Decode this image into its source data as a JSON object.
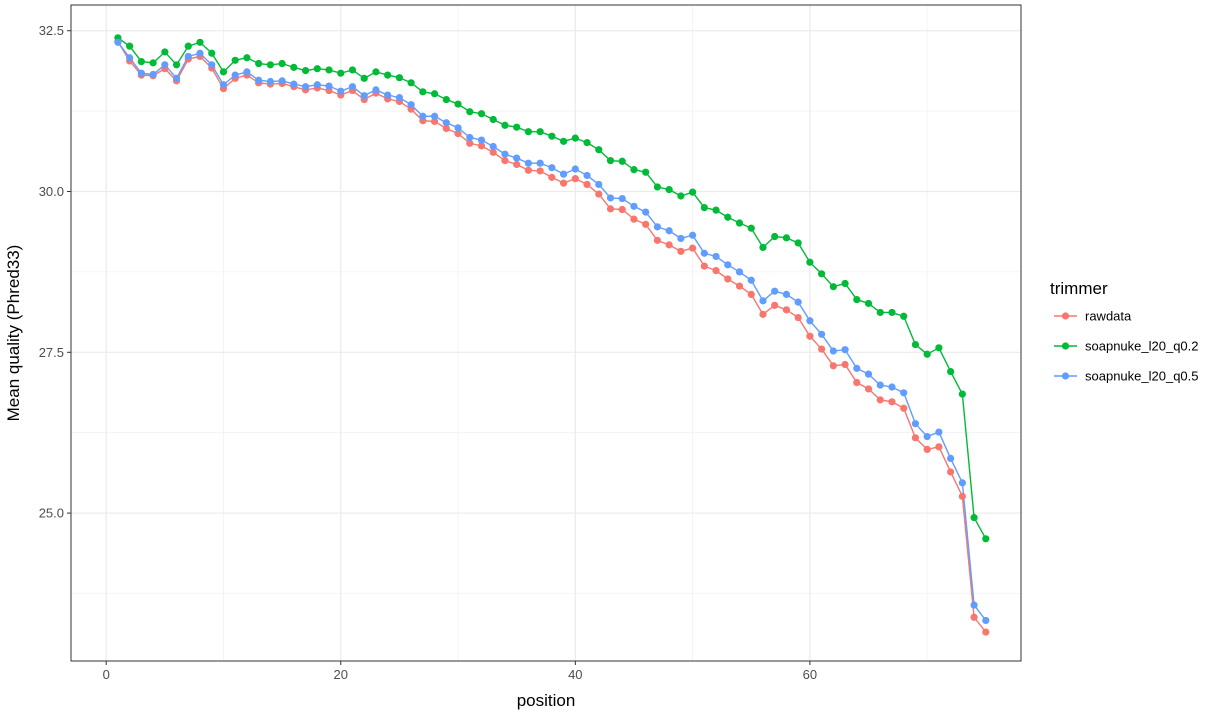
{
  "chart_data": {
    "type": "line",
    "xlabel": "position",
    "ylabel": "Mean quality (Phred33)",
    "xlim": [
      -3,
      78
    ],
    "ylim": [
      22.7,
      32.9
    ],
    "x_ticks": [
      0,
      20,
      40,
      60
    ],
    "x_tick_labels": [
      "0",
      "20",
      "40",
      "60"
    ],
    "y_ticks": [
      25.0,
      27.5,
      30.0,
      32.5
    ],
    "y_tick_labels": [
      "25.0",
      "27.5",
      "30.0",
      "32.5"
    ],
    "grid": true,
    "legend": {
      "title": "trimmer",
      "position": "right"
    },
    "x": [
      1,
      2,
      3,
      4,
      5,
      6,
      7,
      8,
      9,
      10,
      11,
      12,
      13,
      14,
      15,
      16,
      17,
      18,
      19,
      20,
      21,
      22,
      23,
      24,
      25,
      26,
      27,
      28,
      29,
      30,
      31,
      32,
      33,
      34,
      35,
      36,
      37,
      38,
      39,
      40,
      41,
      42,
      43,
      44,
      45,
      46,
      47,
      48,
      49,
      50,
      51,
      52,
      53,
      54,
      55,
      56,
      57,
      58,
      59,
      60,
      61,
      62,
      63,
      64,
      65,
      66,
      67,
      68,
      69,
      70,
      71,
      72,
      73,
      74,
      75
    ],
    "series": [
      {
        "name": "rawdata",
        "color": "#F8766D",
        "values": [
          32.33,
          32.03,
          31.81,
          31.8,
          31.91,
          31.72,
          32.06,
          32.1,
          31.92,
          31.6,
          31.76,
          31.81,
          31.69,
          31.67,
          31.68,
          31.63,
          31.58,
          31.61,
          31.57,
          31.5,
          31.57,
          31.43,
          31.53,
          31.44,
          31.4,
          31.28,
          31.1,
          31.09,
          30.98,
          30.9,
          30.75,
          30.71,
          30.61,
          30.48,
          30.42,
          30.33,
          30.32,
          30.22,
          30.13,
          30.2,
          30.11,
          29.96,
          29.73,
          29.72,
          29.57,
          29.49,
          29.24,
          29.17,
          29.07,
          29.12,
          28.84,
          28.77,
          28.64,
          28.53,
          28.4,
          28.09,
          28.23,
          28.16,
          28.04,
          27.75,
          27.55,
          27.29,
          27.31,
          27.03,
          26.93,
          26.76,
          26.73,
          26.63,
          26.17,
          25.99,
          26.03,
          25.64,
          25.26,
          23.38,
          23.15
        ]
      },
      {
        "name": "soapnuke_l20_q0.2",
        "color": "#00BA38",
        "values": [
          32.39,
          32.26,
          32.02,
          32.0,
          32.17,
          31.97,
          32.26,
          32.32,
          32.15,
          31.86,
          32.04,
          32.08,
          31.99,
          31.97,
          31.99,
          31.93,
          31.88,
          31.91,
          31.89,
          31.84,
          31.89,
          31.76,
          31.86,
          31.81,
          31.77,
          31.69,
          31.55,
          31.52,
          31.43,
          31.36,
          31.24,
          31.21,
          31.12,
          31.03,
          31.0,
          30.93,
          30.93,
          30.86,
          30.78,
          30.83,
          30.76,
          30.65,
          30.48,
          30.47,
          30.34,
          30.3,
          30.07,
          30.03,
          29.93,
          29.99,
          29.75,
          29.71,
          29.6,
          29.51,
          29.43,
          29.13,
          29.3,
          29.28,
          29.2,
          28.9,
          28.72,
          28.52,
          28.57,
          28.32,
          28.26,
          28.12,
          28.12,
          28.06,
          27.62,
          27.47,
          27.57,
          27.2,
          26.85,
          24.93,
          24.6
        ]
      },
      {
        "name": "soapnuke_l20_q0.5",
        "color": "#619CFF",
        "values": [
          32.32,
          32.08,
          31.84,
          31.82,
          31.97,
          31.76,
          32.1,
          32.15,
          31.97,
          31.66,
          31.81,
          31.86,
          31.73,
          31.71,
          31.72,
          31.67,
          31.63,
          31.66,
          31.64,
          31.56,
          31.63,
          31.49,
          31.58,
          31.5,
          31.46,
          31.35,
          31.17,
          31.17,
          31.07,
          30.99,
          30.84,
          30.8,
          30.7,
          30.58,
          30.52,
          30.44,
          30.44,
          30.37,
          30.27,
          30.35,
          30.25,
          30.11,
          29.9,
          29.89,
          29.77,
          29.68,
          29.45,
          29.39,
          29.27,
          29.32,
          29.04,
          28.99,
          28.86,
          28.75,
          28.62,
          28.3,
          28.45,
          28.4,
          28.28,
          27.99,
          27.78,
          27.52,
          27.54,
          27.25,
          27.16,
          26.99,
          26.96,
          26.87,
          26.39,
          26.19,
          26.26,
          25.85,
          25.47,
          23.57,
          23.33
        ]
      }
    ]
  }
}
